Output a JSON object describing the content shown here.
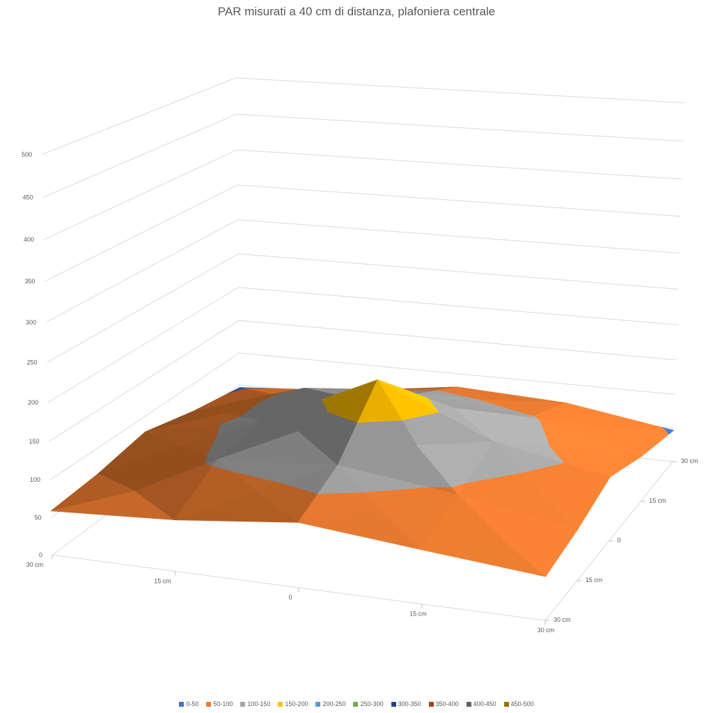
{
  "chart_data": {
    "type": "surface",
    "title": "PAR misurati a 40 cm di distanza, plafoniera centrale",
    "z_axis": {
      "min": 0,
      "max": 500,
      "step": 50,
      "tick_labels": [
        "0",
        "50",
        "100",
        "150",
        "200",
        "250",
        "300",
        "350",
        "400",
        "450",
        "500"
      ]
    },
    "x_axis": {
      "tick_labels": [
        "30 cm",
        "15 cm",
        "0",
        "15 cm",
        "30 cm"
      ]
    },
    "depth_axis": {
      "tick_labels": [
        "30 cm",
        "15 cm",
        "0",
        "15 cm",
        "30 cm"
      ]
    },
    "values_layout": "rows = depth axis from front '30 cm' to back '30 cm'; cols = x axis from left '30 cm' to right '30 cm'; values estimated from surface bands",
    "values": [
      [
        59,
        68,
        85,
        70,
        56
      ],
      [
        65,
        104,
        115,
        95,
        68
      ],
      [
        78,
        112,
        185,
        118,
        88
      ],
      [
        60,
        112,
        120,
        103,
        65
      ],
      [
        46,
        58,
        80,
        72,
        47
      ]
    ],
    "bands": [
      {
        "label": "0-50",
        "color": "#4472C4"
      },
      {
        "label": "50-100",
        "color": "#ED7D31"
      },
      {
        "label": "100-150",
        "color": "#A5A5A5"
      },
      {
        "label": "150-200",
        "color": "#FFC000"
      },
      {
        "label": "200-250",
        "color": "#5B9BD5"
      },
      {
        "label": "250-300",
        "color": "#70AD47"
      },
      {
        "label": "300-350",
        "color": "#264478"
      },
      {
        "label": "350-400",
        "color": "#9E480E"
      },
      {
        "label": "400-450",
        "color": "#636363"
      },
      {
        "label": "450-500",
        "color": "#997300"
      }
    ],
    "colors": {
      "text": "#595959",
      "gridline": "#D9D9D9",
      "tick": "#BFBFBF",
      "background": "#FFFFFF"
    },
    "legend_position": "bottom",
    "grid_on": true
  }
}
